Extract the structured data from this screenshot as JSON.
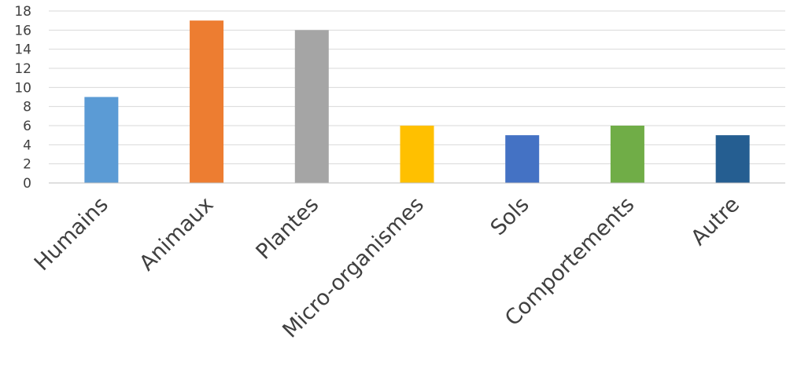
{
  "chart_data": {
    "type": "bar",
    "title": "",
    "xlabel": "",
    "ylabel": "",
    "categories": [
      "Humains",
      "Animaux",
      "Plantes",
      "Micro-organismes",
      "Sols",
      "Comportements",
      "Autre"
    ],
    "values": [
      9,
      17,
      16,
      6,
      5,
      6,
      5
    ],
    "colors": [
      "#5b9bd5",
      "#ed7d31",
      "#a5a5a5",
      "#ffc000",
      "#4472c4",
      "#70ad47",
      "#255e91"
    ],
    "ylim": [
      0,
      18
    ],
    "yticks": [
      "0",
      "2",
      "4",
      "6",
      "8",
      "10",
      "12",
      "14",
      "16",
      "18"
    ],
    "grid": true,
    "legend": "none"
  }
}
